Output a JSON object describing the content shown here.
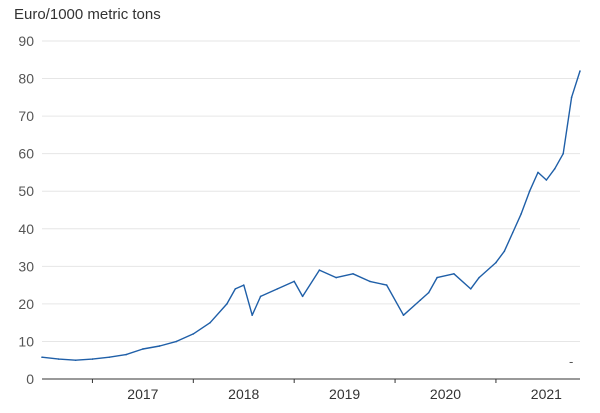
{
  "chart_data": {
    "type": "line",
    "ylabel": "Euro/1000 metric tons",
    "ylim": [
      0,
      90
    ],
    "yticks": [
      0,
      10,
      20,
      30,
      40,
      50,
      60,
      70,
      80,
      90
    ],
    "xtick_labels": [
      "2017",
      "2018",
      "2019",
      "2020",
      "2021"
    ],
    "xlim": [
      "2016-07",
      "2021-11"
    ],
    "grid": "horizontal",
    "line_color": "#1f5fa8",
    "series": [
      {
        "x": [
          "2016-07",
          "2016-09",
          "2016-11",
          "2017-01",
          "2017-03",
          "2017-05",
          "2017-07",
          "2017-09",
          "2017-11",
          "2018-01",
          "2018-03",
          "2018-05",
          "2018-06",
          "2018-07",
          "2018-08",
          "2018-09",
          "2018-11",
          "2019-01",
          "2019-02",
          "2019-04",
          "2019-06",
          "2019-08",
          "2019-10",
          "2019-12",
          "2020-02",
          "2020-04",
          "2020-05",
          "2020-06",
          "2020-08",
          "2020-10",
          "2020-11",
          "2021-01",
          "2021-02",
          "2021-03",
          "2021-04",
          "2021-05",
          "2021-06",
          "2021-07",
          "2021-08",
          "2021-09",
          "2021-10",
          "2021-11"
        ],
        "y": [
          5.8,
          5.3,
          5.0,
          5.3,
          5.8,
          6.5,
          8.0,
          8.8,
          10.0,
          12.0,
          15.0,
          20.0,
          24.0,
          25.0,
          17.0,
          22.0,
          24.0,
          26.0,
          22.0,
          29.0,
          27.0,
          28.0,
          26.0,
          25.0,
          17.0,
          21.0,
          23.0,
          27.0,
          28.0,
          24.0,
          27.0,
          31.0,
          34.0,
          39.0,
          44.0,
          50.0,
          55.0,
          53.0,
          56.0,
          60.0,
          75.0,
          82.0
        ]
      }
    ],
    "annotation": "-"
  }
}
